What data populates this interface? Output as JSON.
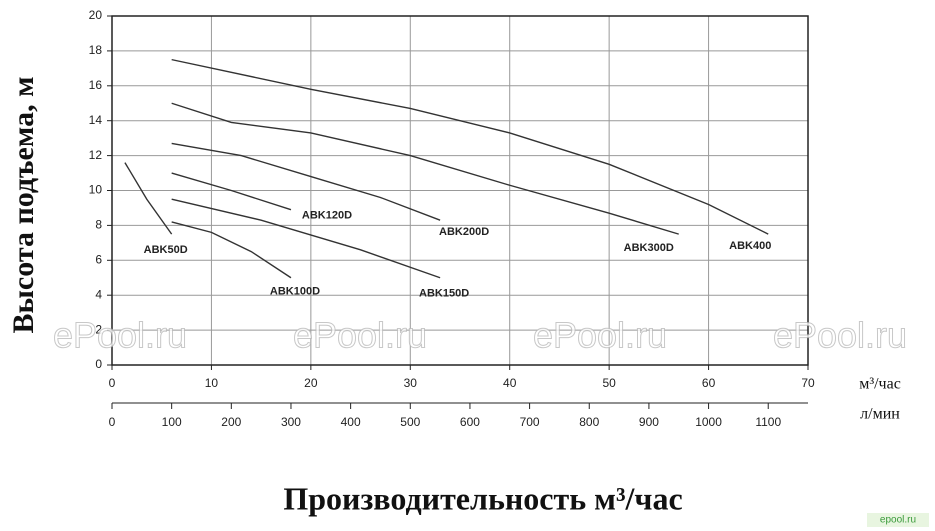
{
  "chart_data": {
    "type": "line",
    "ylabel": "Высота подъема, м",
    "xlabel": "Производительность м³/час",
    "x_unit": "м³/час",
    "x2_unit": "л/мин",
    "xlim": [
      0,
      70
    ],
    "xticks": [
      0,
      10,
      20,
      30,
      40,
      50,
      60,
      70
    ],
    "x2lim": [
      0,
      1166.67
    ],
    "x2ticks": [
      0,
      100,
      200,
      300,
      400,
      500,
      600,
      700,
      800,
      900,
      1000,
      1100
    ],
    "ylim": [
      0,
      20
    ],
    "yticks": [
      0,
      2,
      4,
      6,
      8,
      10,
      12,
      14,
      16,
      18,
      20
    ],
    "grid": true,
    "color": "#333333",
    "series": [
      {
        "name": "ABK50D",
        "x": [
          1.3,
          3.5,
          6
        ],
        "values": [
          11.6,
          9.5,
          7.5
        ]
      },
      {
        "name": "ABK100D",
        "x": [
          6,
          10,
          14,
          18
        ],
        "values": [
          8.2,
          7.6,
          6.5,
          5.0
        ]
      },
      {
        "name": "ABK150D",
        "x": [
          6,
          15,
          25,
          33
        ],
        "values": [
          9.5,
          8.3,
          6.6,
          5.0
        ]
      },
      {
        "name": "ABK120D",
        "x": [
          6,
          12,
          18
        ],
        "values": [
          11,
          10,
          8.9
        ]
      },
      {
        "name": "ABK200D",
        "x": [
          6,
          13,
          20,
          27,
          33
        ],
        "values": [
          12.7,
          12,
          10.8,
          9.6,
          8.3
        ]
      },
      {
        "name": "ABK300D",
        "x": [
          6,
          12,
          20,
          30,
          40,
          50,
          57
        ],
        "values": [
          15,
          13.9,
          13.3,
          12,
          10.3,
          8.7,
          7.5
        ]
      },
      {
        "name": "ABK400",
        "x": [
          6,
          20,
          30,
          40,
          50,
          60,
          66
        ],
        "values": [
          17.5,
          15.8,
          14.7,
          13.3,
          11.5,
          9.2,
          7.5
        ]
      }
    ],
    "watermarks": [
      "ePool.ru",
      "ePool.ru",
      "ePool.ru",
      "ePool.ru"
    ],
    "badge": "epool.ru"
  }
}
